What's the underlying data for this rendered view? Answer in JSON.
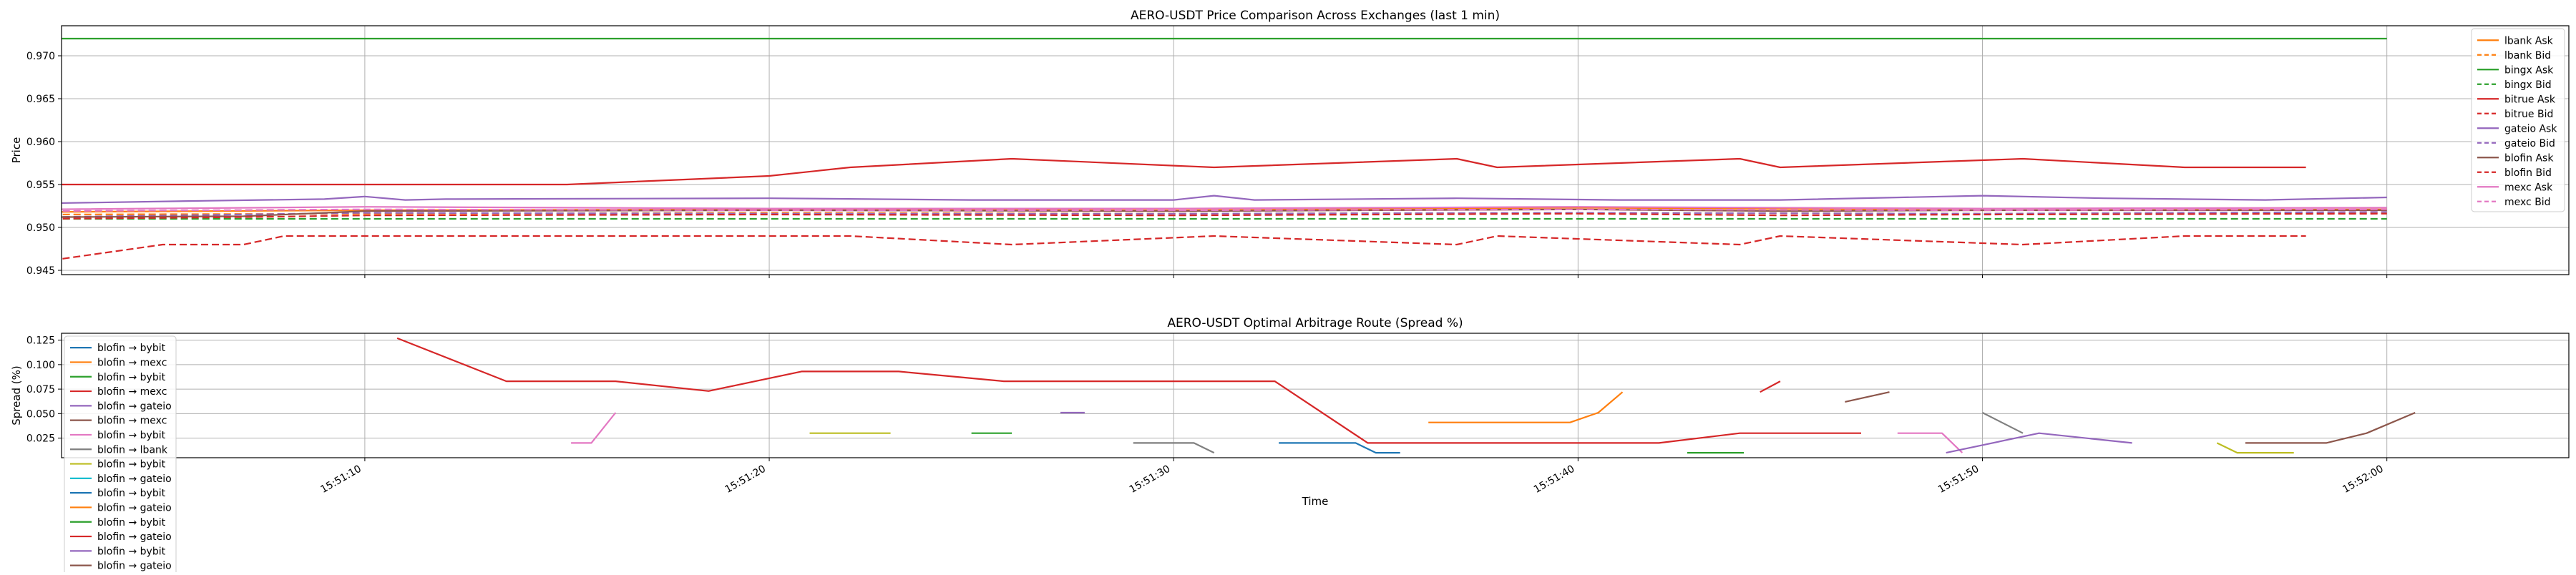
{
  "chart_data": [
    {
      "type": "line",
      "title": "AERO-USDT Price Comparison Across Exchanges (last 1 min)",
      "xlabel": "",
      "ylabel": "Price",
      "xlim": [
        "15:51:02.5",
        "15:52:04.5"
      ],
      "ylim": [
        0.9445,
        0.9735
      ],
      "yticks": [
        0.945,
        0.95,
        0.955,
        0.96,
        0.965,
        0.97
      ],
      "ytick_labels": [
        "0.945",
        "0.950",
        "0.955",
        "0.960",
        "0.965",
        "0.970"
      ],
      "xticks": [
        "15:51:10",
        "15:51:20",
        "15:51:30",
        "15:51:40",
        "15:51:50",
        "15:52:00"
      ],
      "grid": true,
      "legend_position": "top-right",
      "series": [
        {
          "name": "lbank Ask",
          "color": "#ff7f0e",
          "dash": "solid",
          "points": [
            [
              "15:51:02",
              0.9518
            ],
            [
              "15:51:10",
              0.952
            ],
            [
              "15:51:20",
              0.9521
            ],
            [
              "15:51:30",
              0.952
            ],
            [
              "15:51:40",
              0.9523
            ],
            [
              "15:51:50",
              0.952
            ],
            [
              "15:52:00",
              0.9521
            ]
          ]
        },
        {
          "name": "lbank Bid",
          "color": "#ff7f0e",
          "dash": "dashed",
          "points": [
            [
              "15:51:02",
              0.9515
            ],
            [
              "15:51:10",
              0.9516
            ],
            [
              "15:51:20",
              0.9517
            ],
            [
              "15:51:30",
              0.9516
            ],
            [
              "15:51:40",
              0.9517
            ],
            [
              "15:51:50",
              0.9516
            ],
            [
              "15:52:00",
              0.9517
            ]
          ]
        },
        {
          "name": "bingx Ask",
          "color": "#2ca02c",
          "dash": "solid",
          "points": [
            [
              "15:51:02",
              0.972
            ],
            [
              "15:52:00",
              0.972
            ]
          ]
        },
        {
          "name": "bingx Bid",
          "color": "#2ca02c",
          "dash": "dashed",
          "points": [
            [
              "15:51:02",
              0.951
            ],
            [
              "15:52:00",
              0.951
            ]
          ]
        },
        {
          "name": "bitrue Ask",
          "color": "#d62728",
          "dash": "solid",
          "points": [
            [
              "15:51:02",
              0.955
            ],
            [
              "15:51:12",
              0.955
            ],
            [
              "15:51:15",
              0.955
            ],
            [
              "15:51:20",
              0.956
            ],
            [
              "15:51:22",
              0.957
            ],
            [
              "15:51:26",
              0.958
            ],
            [
              "15:51:31",
              0.957
            ],
            [
              "15:51:37",
              0.958
            ],
            [
              "15:51:38",
              0.957
            ],
            [
              "15:51:44",
              0.958
            ],
            [
              "15:51:45",
              0.957
            ],
            [
              "15:51:51",
              0.958
            ],
            [
              "15:51:55",
              0.957
            ],
            [
              "15:51:58",
              0.957
            ]
          ]
        },
        {
          "name": "bitrue Bid",
          "color": "#d62728",
          "dash": "dashed",
          "points": [
            [
              "15:51:02",
              0.946
            ],
            [
              "15:51:05",
              0.948
            ],
            [
              "15:51:07",
              0.948
            ],
            [
              "15:51:08",
              0.949
            ],
            [
              "15:51:15",
              0.949
            ],
            [
              "15:51:22",
              0.949
            ],
            [
              "15:51:26",
              0.948
            ],
            [
              "15:51:31",
              0.949
            ],
            [
              "15:51:37",
              0.948
            ],
            [
              "15:51:38",
              0.949
            ],
            [
              "15:51:44",
              0.948
            ],
            [
              "15:51:45",
              0.949
            ],
            [
              "15:51:51",
              0.948
            ],
            [
              "15:51:55",
              0.949
            ],
            [
              "15:51:58",
              0.949
            ]
          ]
        },
        {
          "name": "gateio Ask",
          "color": "#9467bd",
          "dash": "solid",
          "points": [
            [
              "15:51:02",
              0.9528
            ],
            [
              "15:51:06",
              0.9531
            ],
            [
              "15:51:09",
              0.9533
            ],
            [
              "15:51:10",
              0.9536
            ],
            [
              "15:51:11",
              0.9532
            ],
            [
              "15:51:12",
              0.9533
            ],
            [
              "15:51:20",
              0.9534
            ],
            [
              "15:51:25",
              0.9532
            ],
            [
              "15:51:30",
              0.9532
            ],
            [
              "15:51:31",
              0.9537
            ],
            [
              "15:51:32",
              0.9532
            ],
            [
              "15:51:37",
              0.9534
            ],
            [
              "15:51:41",
              0.9532
            ],
            [
              "15:51:45",
              0.9532
            ],
            [
              "15:51:50",
              0.9537
            ],
            [
              "15:51:53",
              0.9534
            ],
            [
              "15:51:57",
              0.9532
            ],
            [
              "15:52:00",
              0.9535
            ]
          ]
        },
        {
          "name": "gateio Bid",
          "color": "#9467bd",
          "dash": "dashed",
          "points": [
            [
              "15:51:02",
              0.9512
            ],
            [
              "15:51:10",
              0.9517
            ],
            [
              "15:51:20",
              0.9516
            ],
            [
              "15:51:30",
              0.9516
            ],
            [
              "15:51:40",
              0.9517
            ],
            [
              "15:51:50",
              0.9516
            ],
            [
              "15:52:00",
              0.9518
            ]
          ]
        },
        {
          "name": "blofin Ask",
          "color": "#8c564b",
          "dash": "solid",
          "points": [
            [
              "15:51:02",
              0.9512
            ],
            [
              "15:51:07",
              0.9513
            ],
            [
              "15:51:10",
              0.9519
            ],
            [
              "15:51:20",
              0.952
            ],
            [
              "15:51:30",
              0.9519
            ],
            [
              "15:51:40",
              0.9521
            ],
            [
              "15:51:45",
              0.9519
            ],
            [
              "15:51:50",
              0.952
            ],
            [
              "15:52:00",
              0.952
            ]
          ]
        },
        {
          "name": "blofin Bid",
          "color": "#d62728",
          "dash": "dashed",
          "points": [
            [
              "15:51:02",
              0.951
            ],
            [
              "15:51:07",
              0.9512
            ],
            [
              "15:51:10",
              0.9514
            ],
            [
              "15:51:20",
              0.9515
            ],
            [
              "15:51:30",
              0.9514
            ],
            [
              "15:51:40",
              0.9516
            ],
            [
              "15:51:45",
              0.9514
            ],
            [
              "15:51:50",
              0.9515
            ],
            [
              "15:52:00",
              0.9516
            ]
          ]
        },
        {
          "name": "mexc Ask",
          "color": "#e377c2",
          "dash": "solid",
          "points": [
            [
              "15:51:02",
              0.9521
            ],
            [
              "15:51:10",
              0.9524
            ],
            [
              "15:51:20",
              0.9522
            ],
            [
              "15:51:30",
              0.9522
            ],
            [
              "15:51:40",
              0.9524
            ],
            [
              "15:51:50",
              0.9522
            ],
            [
              "15:52:00",
              0.9523
            ]
          ]
        },
        {
          "name": "mexc Bid",
          "color": "#e377c2",
          "dash": "dashed",
          "points": [
            [
              "15:51:02",
              0.9519
            ],
            [
              "15:51:10",
              0.9521
            ],
            [
              "15:51:20",
              0.952
            ],
            [
              "15:51:30",
              0.952
            ],
            [
              "15:51:40",
              0.9521
            ],
            [
              "15:51:50",
              0.952
            ],
            [
              "15:52:00",
              0.9521
            ]
          ]
        }
      ]
    },
    {
      "type": "line",
      "title": "AERO-USDT Optimal Arbitrage Route (Spread %)",
      "xlabel": "Time",
      "ylabel": "Spread (%)",
      "xlim": [
        "15:51:02.5",
        "15:52:04.5"
      ],
      "ylim": [
        0.005,
        0.132
      ],
      "yticks": [
        0.025,
        0.05,
        0.075,
        0.1,
        0.125
      ],
      "ytick_labels": [
        "0.025",
        "0.050",
        "0.075",
        "0.100",
        "0.125"
      ],
      "xticks": [
        "15:51:10",
        "15:51:20",
        "15:51:30",
        "15:51:40",
        "15:51:50",
        "15:52:00"
      ],
      "xtick_labels": [
        "15:51:10",
        "15:51:20",
        "15:51:30",
        "15:51:40",
        "15:51:50",
        "15:52:00"
      ],
      "grid": true,
      "legend_position": "top-left",
      "legend": [
        {
          "name": "blofin → bybit",
          "color": "#1f77b4"
        },
        {
          "name": "blofin → mexc",
          "color": "#ff7f0e"
        },
        {
          "name": "blofin → bybit",
          "color": "#2ca02c"
        },
        {
          "name": "blofin → mexc",
          "color": "#d62728"
        },
        {
          "name": "blofin → gateio",
          "color": "#9467bd"
        },
        {
          "name": "blofin → mexc",
          "color": "#8c564b"
        },
        {
          "name": "blofin → bybit",
          "color": "#e377c2"
        },
        {
          "name": "blofin → lbank",
          "color": "#7f7f7f"
        },
        {
          "name": "blofin → bybit",
          "color": "#bcbd22"
        },
        {
          "name": "blofin → gateio",
          "color": "#17becf"
        },
        {
          "name": "blofin → bybit",
          "color": "#1f77b4"
        },
        {
          "name": "blofin → gateio",
          "color": "#ff7f0e"
        },
        {
          "name": "blofin → bybit",
          "color": "#2ca02c"
        },
        {
          "name": "blofin → gateio",
          "color": "#d62728"
        },
        {
          "name": "blofin → bybit",
          "color": "#9467bd"
        },
        {
          "name": "blofin → gateio",
          "color": "#8c564b"
        }
      ],
      "segments": [
        {
          "color": "#d62728",
          "points": [
            [
              "15:51:10.8",
              0.127
            ],
            [
              "15:51:13.5",
              0.083
            ],
            [
              "15:51:16.2",
              0.083
            ],
            [
              "15:51:18.5",
              0.073
            ],
            [
              "15:51:20.8",
              0.093
            ],
            [
              "15:51:23.2",
              0.093
            ],
            [
              "15:51:25.8",
              0.083
            ],
            [
              "15:51:30",
              0.083
            ],
            [
              "15:51:32.5",
              0.083
            ],
            [
              "15:51:34.8",
              0.02
            ],
            [
              "15:51:37",
              0.02
            ],
            [
              "15:51:42",
              0.02
            ],
            [
              "15:51:44",
              0.03
            ],
            [
              "15:51:46.5",
              0.03
            ],
            [
              "15:51:47",
              0.03
            ]
          ]
        },
        {
          "color": "#d62728",
          "points": [
            [
              "15:51:44.5",
              0.072
            ],
            [
              "15:51:45.0",
              0.083
            ]
          ]
        },
        {
          "color": "#e377c2",
          "points": [
            [
              "15:51:15.1",
              0.02
            ],
            [
              "15:51:15.6",
              0.02
            ],
            [
              "15:51:16.2",
              0.051
            ]
          ]
        },
        {
          "color": "#e377c2",
          "points": [
            [
              "15:51:47.9",
              0.03
            ],
            [
              "15:51:49.0",
              0.03
            ],
            [
              "15:51:49.5",
              0.01
            ]
          ]
        },
        {
          "color": "#bcbd22",
          "points": [
            [
              "15:51:21.0",
              0.03
            ],
            [
              "15:51:23.0",
              0.03
            ]
          ]
        },
        {
          "color": "#bcbd22",
          "points": [
            [
              "15:51:55.8",
              0.02
            ],
            [
              "15:51:56.3",
              0.01
            ],
            [
              "15:51:57.7",
              0.01
            ]
          ]
        },
        {
          "color": "#2ca02c",
          "points": [
            [
              "15:51:25.0",
              0.03
            ],
            [
              "15:51:26.0",
              0.03
            ]
          ]
        },
        {
          "color": "#2ca02c",
          "points": [
            [
              "15:51:42.7",
              0.01
            ],
            [
              "15:51:44.1",
              0.01
            ]
          ]
        },
        {
          "color": "#9467bd",
          "points": [
            [
              "15:51:27.2",
              0.051
            ],
            [
              "15:51:27.8",
              0.051
            ]
          ]
        },
        {
          "color": "#9467bd",
          "points": [
            [
              "15:51:49.1",
              0.01
            ],
            [
              "15:51:51.4",
              0.03
            ],
            [
              "15:51:53.7",
              0.02
            ]
          ]
        },
        {
          "color": "#7f7f7f",
          "points": [
            [
              "15:51:29.0",
              0.02
            ],
            [
              "15:51:30.5",
              0.02
            ],
            [
              "15:51:31.0",
              0.01
            ]
          ]
        },
        {
          "color": "#7f7f7f",
          "points": [
            [
              "15:51:50",
              0.051
            ],
            [
              "15:51:51",
              0.03
            ]
          ]
        },
        {
          "color": "#1f77b4",
          "points": [
            [
              "15:51:32.6",
              0.02
            ],
            [
              "15:51:34.5",
              0.02
            ],
            [
              "15:51:35.0",
              0.01
            ],
            [
              "15:51:35.6",
              0.01
            ]
          ]
        },
        {
          "color": "#ff7f0e",
          "points": [
            [
              "15:51:36.3",
              0.041
            ],
            [
              "15:51:38.5",
              0.041
            ],
            [
              "15:51:39.8",
              0.041
            ],
            [
              "15:51:40.5",
              0.051
            ],
            [
              "15:51:41.1",
              0.072
            ]
          ]
        },
        {
          "color": "#8c564b",
          "points": [
            [
              "15:51:46.6",
              0.062
            ],
            [
              "15:51:47.7",
              0.072
            ]
          ]
        },
        {
          "color": "#8c564b",
          "points": [
            [
              "15:51:56.5",
              0.02
            ],
            [
              "15:51:58.5",
              0.02
            ],
            [
              "15:51:59.5",
              0.03
            ],
            [
              "15:52:00.7",
              0.051
            ]
          ]
        }
      ]
    }
  ]
}
